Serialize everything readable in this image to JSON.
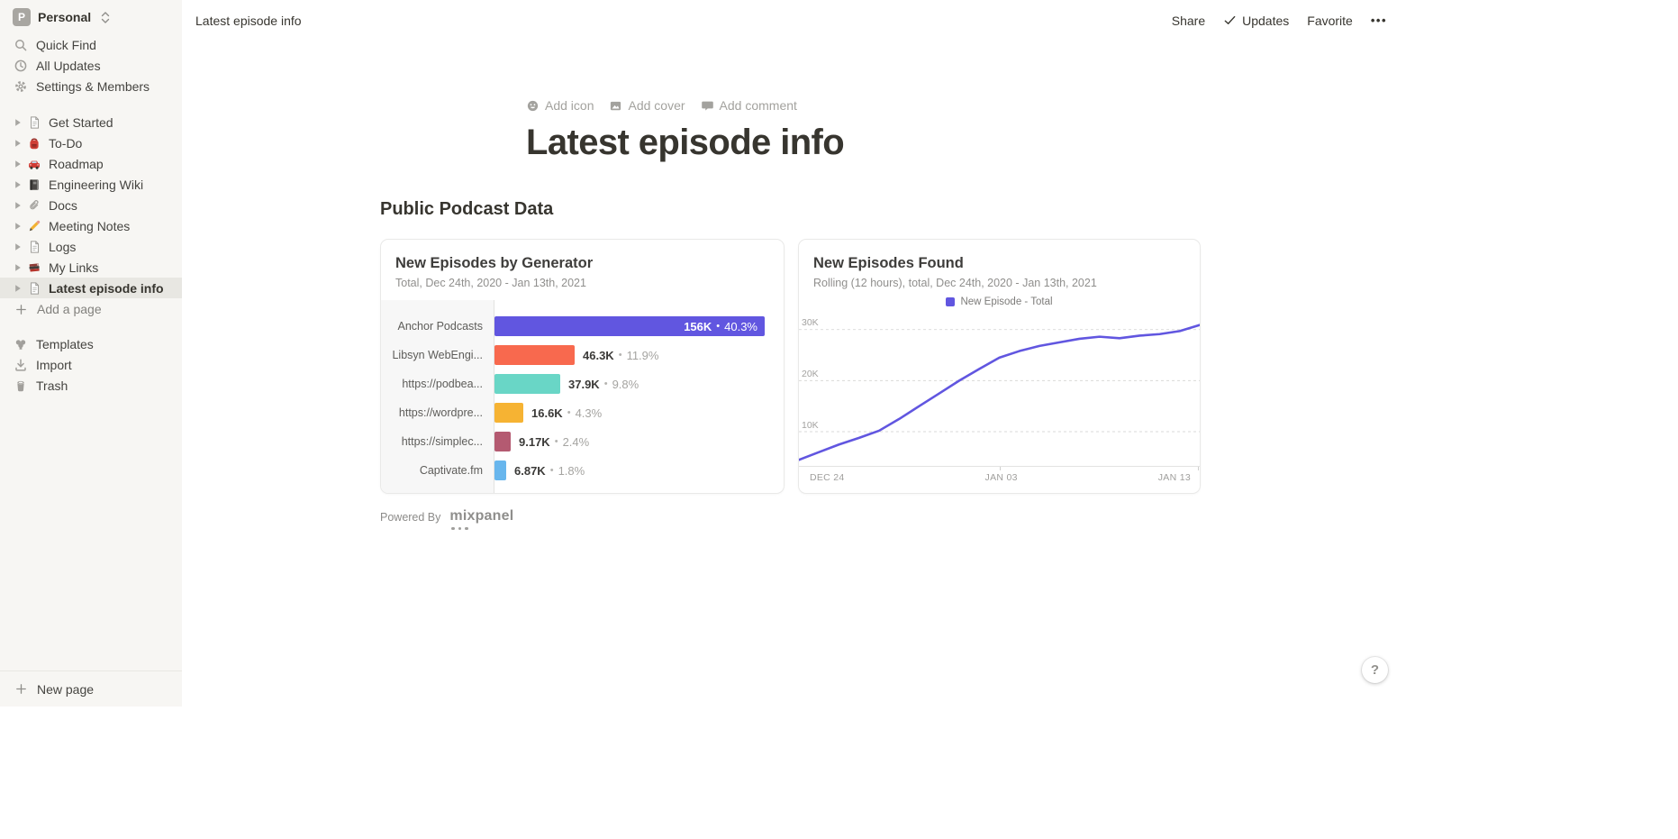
{
  "sidebar": {
    "workspace": {
      "initial": "P",
      "name": "Personal"
    },
    "top_items": [
      {
        "label": "Quick Find",
        "icon": "search-icon"
      },
      {
        "label": "All Updates",
        "icon": "clock-icon"
      },
      {
        "label": "Settings & Members",
        "icon": "gear-icon"
      }
    ],
    "pages": [
      {
        "label": "Get Started",
        "icon": "page-icon",
        "selected": false
      },
      {
        "label": "To-Do",
        "icon": "backpack-icon",
        "selected": false
      },
      {
        "label": "Roadmap",
        "icon": "car-icon",
        "selected": false
      },
      {
        "label": "Engineering Wiki",
        "icon": "notebook-icon",
        "selected": false
      },
      {
        "label": "Docs",
        "icon": "paperclip-icon",
        "selected": false
      },
      {
        "label": "Meeting Notes",
        "icon": "pencil-icon",
        "selected": false
      },
      {
        "label": "Logs",
        "icon": "page-icon",
        "selected": false
      },
      {
        "label": "My Links",
        "icon": "books-icon",
        "selected": false
      },
      {
        "label": "Latest episode info",
        "icon": "page-icon",
        "selected": true
      }
    ],
    "add_page_label": "Add a page",
    "bottom_items": [
      {
        "label": "Templates",
        "icon": "templates-icon"
      },
      {
        "label": "Import",
        "icon": "import-icon"
      },
      {
        "label": "Trash",
        "icon": "trash-icon"
      }
    ],
    "new_page_label": "New page"
  },
  "topbar": {
    "breadcrumb": "Latest episode info",
    "actions": {
      "share": "Share",
      "updates": "Updates",
      "favorite": "Favorite",
      "more": "•••"
    }
  },
  "page": {
    "add_icon": "Add icon",
    "add_cover": "Add cover",
    "add_comment": "Add comment",
    "title": "Latest episode info",
    "section_heading": "Public Podcast Data",
    "powered_by": "Powered By",
    "brand": "mixpanel",
    "help_label": "?"
  },
  "colors": {
    "accent_purple": "#6156e0",
    "sidebar_bg": "#f7f6f3",
    "selected_bg": "#e8e7e2"
  },
  "chart_data": [
    {
      "type": "bar",
      "orientation": "horizontal",
      "title": "New Episodes by Generator",
      "subtitle": "Total, Dec 24th, 2020 - Jan 13th, 2021",
      "categories": [
        "Anchor Podcasts",
        "Libsyn WebEngi...",
        "https://podbea...",
        "https://wordpre...",
        "https://simplec...",
        "Captivate.fm"
      ],
      "values": [
        156000,
        46300,
        37900,
        16600,
        9170,
        6870
      ],
      "value_labels": [
        "156K",
        "46.3K",
        "37.9K",
        "16.6K",
        "9.17K",
        "6.87K"
      ],
      "percent_labels": [
        "40.3%",
        "11.9%",
        "9.8%",
        "4.3%",
        "2.4%",
        "1.8%"
      ],
      "separator": "•",
      "bar_colors": [
        "#6156e0",
        "#f8694e",
        "#69d6c6",
        "#f6b333",
        "#b45a71",
        "#68b6ed"
      ],
      "xlim": [
        0,
        156000
      ]
    },
    {
      "type": "line",
      "title": "New Episodes Found",
      "subtitle": "Rolling (12 hours), total, Dec 24th, 2020 - Jan 13th, 2021",
      "legend": [
        {
          "label": "New Episode - Total",
          "color": "#6156e0"
        }
      ],
      "line_color": "#6156e0",
      "x": [
        "Dec 24",
        "Dec 25",
        "Dec 26",
        "Dec 27",
        "Dec 28",
        "Dec 29",
        "Dec 30",
        "Dec 31",
        "Jan 01",
        "Jan 02",
        "Jan 03",
        "Jan 04",
        "Jan 05",
        "Jan 06",
        "Jan 07",
        "Jan 08",
        "Jan 09",
        "Jan 10",
        "Jan 11",
        "Jan 12",
        "Jan 13"
      ],
      "values": [
        4500,
        6000,
        7500,
        8800,
        10200,
        12500,
        15000,
        17500,
        20000,
        22300,
        24500,
        25800,
        26800,
        27500,
        28200,
        28600,
        28300,
        28800,
        29100,
        29700,
        30900
      ],
      "x_tick_labels": [
        "DEC 24",
        "JAN 03",
        "JAN 13"
      ],
      "y_gridlines": [
        {
          "label": "10K",
          "value": 10000
        },
        {
          "label": "20K",
          "value": 20000
        },
        {
          "label": "30K",
          "value": 30000
        }
      ],
      "ylim": [
        3300,
        33300
      ],
      "grid": "dashed-horizontal",
      "legend_position": "top-center"
    }
  ]
}
